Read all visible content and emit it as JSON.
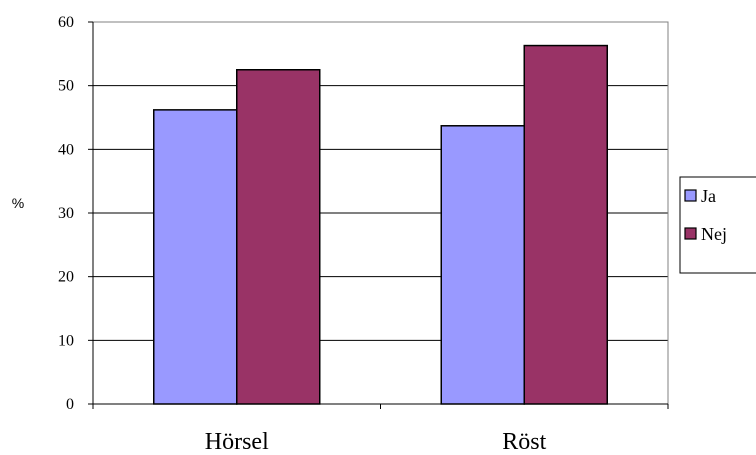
{
  "chart_data": {
    "type": "bar",
    "categories": [
      "Hörsel",
      "Röst"
    ],
    "series": [
      {
        "name": "Ja",
        "values": [
          46.2,
          43.7
        ],
        "color": "#9999ff"
      },
      {
        "name": "Nej",
        "values": [
          52.5,
          56.3
        ],
        "color": "#993366"
      }
    ],
    "ylabel": "%",
    "xlabel": "",
    "ylim": [
      0,
      60
    ],
    "yticks": [
      0,
      10,
      20,
      30,
      40,
      50,
      60
    ],
    "grid": true,
    "legend_position": "right"
  }
}
